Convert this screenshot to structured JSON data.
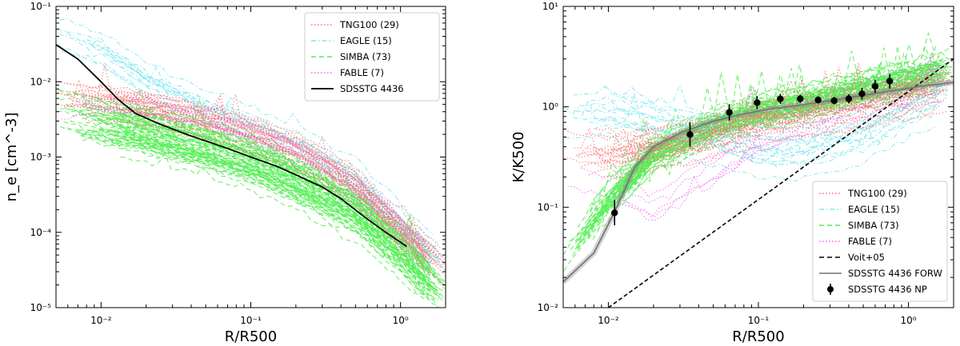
{
  "chart_data": [
    {
      "type": "line",
      "panel": "left",
      "xlabel": "R/R500",
      "ylabel": "n_e [cm^-3]",
      "xlim": [
        0.005,
        2.0
      ],
      "ylim": [
        1e-05,
        0.1
      ],
      "xscale": "log",
      "yscale": "log",
      "x_ticks": [
        {
          "v": 0.01,
          "label": "10⁻²"
        },
        {
          "v": 0.1,
          "label": "10⁻¹"
        },
        {
          "v": 1,
          "label": "10⁰"
        }
      ],
      "y_ticks": [
        {
          "v": 1e-05,
          "label": "10⁻⁵"
        },
        {
          "v": 0.0001,
          "label": "10⁻⁴"
        },
        {
          "v": 0.001,
          "label": "10⁻³"
        },
        {
          "v": 0.01,
          "label": "10⁻²"
        },
        {
          "v": 0.1,
          "label": "10⁻¹"
        }
      ],
      "legend_position": "top-right",
      "legend": [
        {
          "label": "TNG100 (29)",
          "color": "#ff6b6b",
          "style": "dotted"
        },
        {
          "label": "EAGLE (15)",
          "color": "#7fe6f0",
          "style": "dashdot"
        },
        {
          "label": "SIMBA (73)",
          "color": "#55ee55",
          "style": "dashed"
        },
        {
          "label": "FABLE (7)",
          "color": "#ee66ee",
          "style": "dotted"
        },
        {
          "label": "SDSSTG 4436",
          "color": "#000000",
          "style": "solid"
        }
      ],
      "series": [
        {
          "name": "SDSSTG 4436",
          "color": "#000000",
          "x": [
            0.005,
            0.007,
            0.01,
            0.013,
            0.017,
            0.025,
            0.04,
            0.07,
            0.1,
            0.15,
            0.2,
            0.3,
            0.4,
            0.6,
            0.8,
            1.1
          ],
          "y": [
            0.031,
            0.02,
            0.01,
            0.0058,
            0.0038,
            0.0027,
            0.0019,
            0.0013,
            0.001,
            0.00075,
            0.00058,
            0.0004,
            0.00028,
            0.00015,
            0.0001,
            6.5e-05
          ]
        },
        {
          "name": "SIMBA (73)",
          "color": "#55ee55",
          "x": [
            0.005,
            0.01,
            0.02,
            0.05,
            0.1,
            0.2,
            0.5,
            1.0,
            2.0
          ],
          "y": [
            0.004,
            0.003,
            0.0022,
            0.0014,
            0.0009,
            0.0005,
            0.0002,
            6e-05,
            1.5e-05
          ]
        },
        {
          "name": "TNG100 (29)",
          "color": "#ff6b6b",
          "x": [
            0.005,
            0.01,
            0.02,
            0.05,
            0.1,
            0.2,
            0.5,
            1.0,
            2.0
          ],
          "y": [
            0.006,
            0.0055,
            0.0045,
            0.003,
            0.002,
            0.0012,
            0.0004,
            0.0001,
            3e-05
          ]
        },
        {
          "name": "EAGLE (15)",
          "color": "#7fe6f0",
          "x": [
            0.005,
            0.01,
            0.02,
            0.05,
            0.1,
            0.2,
            0.5,
            1.0,
            2.0
          ],
          "y": [
            0.05,
            0.03,
            0.012,
            0.005,
            0.003,
            0.0017,
            0.0006,
            0.00015,
            4e-05
          ]
        },
        {
          "name": "FABLE (7)",
          "color": "#ee66ee",
          "x": [
            0.005,
            0.01,
            0.02,
            0.05,
            0.1,
            0.2,
            0.5,
            1.0,
            2.0
          ],
          "y": [
            0.004,
            0.0045,
            0.004,
            0.003,
            0.002,
            0.0012,
            0.0004,
            0.00012,
            3e-05
          ]
        }
      ]
    },
    {
      "type": "line",
      "panel": "right",
      "xlabel": "R/R500",
      "ylabel": "K/K500",
      "xlim": [
        0.005,
        2.0
      ],
      "ylim": [
        0.01,
        10
      ],
      "xscale": "log",
      "yscale": "log",
      "x_ticks": [
        {
          "v": 0.01,
          "label": "10⁻²"
        },
        {
          "v": 0.1,
          "label": "10⁻¹"
        },
        {
          "v": 1,
          "label": "10⁰"
        }
      ],
      "y_ticks": [
        {
          "v": 0.01,
          "label": "10⁻²"
        },
        {
          "v": 0.1,
          "label": "10⁻¹"
        },
        {
          "v": 1,
          "label": "10⁰"
        },
        {
          "v": 10,
          "label": "10¹"
        }
      ],
      "legend_position": "bottom-right",
      "legend": [
        {
          "label": "TNG100 (29)",
          "color": "#ff6b6b",
          "style": "dotted"
        },
        {
          "label": "EAGLE (15)",
          "color": "#7fe6f0",
          "style": "dashdot"
        },
        {
          "label": "SIMBA (73)",
          "color": "#55ee55",
          "style": "dashed"
        },
        {
          "label": "FABLE (7)",
          "color": "#ee66ee",
          "style": "dotted"
        },
        {
          "label": "Voit+05",
          "color": "#000000",
          "style": "dashed"
        },
        {
          "label": "SDSSTG 4436 FORW",
          "color": "#888888",
          "style": "solid"
        },
        {
          "label": "SDSSTG 4436 NP",
          "color": "#000000",
          "style": "errorbar"
        }
      ],
      "series": [
        {
          "name": "Voit+05",
          "color": "#000000",
          "x": [
            0.01,
            2.0
          ],
          "y": [
            0.01,
            3.0
          ]
        },
        {
          "name": "SDSSTG 4436 FORW",
          "color": "#888888",
          "x": [
            0.005,
            0.008,
            0.011,
            0.015,
            0.02,
            0.03,
            0.05,
            0.08,
            0.12,
            0.2,
            0.3,
            0.5,
            0.8,
            1.2,
            2.0
          ],
          "y": [
            0.018,
            0.035,
            0.09,
            0.25,
            0.4,
            0.55,
            0.72,
            0.85,
            0.95,
            1.05,
            1.15,
            1.3,
            1.45,
            1.6,
            1.75
          ]
        },
        {
          "name": "SDSSTG 4436 NP",
          "color": "#000000",
          "x": [
            0.011,
            0.035,
            0.064,
            0.098,
            0.14,
            0.19,
            0.25,
            0.32,
            0.4,
            0.49,
            0.6,
            0.75
          ],
          "y": [
            0.088,
            0.53,
            0.88,
            1.1,
            1.2,
            1.2,
            1.17,
            1.15,
            1.2,
            1.35,
            1.6,
            1.8
          ],
          "yerr_low": [
            0.022,
            0.13,
            0.15,
            0.15,
            0.13,
            0.1,
            0.09,
            0.09,
            0.12,
            0.17,
            0.22,
            0.28
          ],
          "yerr_high": [
            0.03,
            0.17,
            0.18,
            0.18,
            0.15,
            0.12,
            0.1,
            0.1,
            0.14,
            0.2,
            0.26,
            0.32
          ]
        },
        {
          "name": "SIMBA (73)",
          "color": "#55ee55",
          "x": [
            0.005,
            0.01,
            0.02,
            0.05,
            0.1,
            0.2,
            0.5,
            1.0,
            2.0
          ],
          "y": [
            0.03,
            0.12,
            0.35,
            0.65,
            0.9,
            1.1,
            1.5,
            1.9,
            2.5
          ]
        },
        {
          "name": "EAGLE (15)",
          "color": "#7fe6f0",
          "x": [
            0.005,
            0.01,
            0.02,
            0.05,
            0.1,
            0.2,
            0.5,
            1.0,
            2.0
          ],
          "y": [
            0.8,
            0.9,
            0.7,
            0.5,
            0.35,
            0.35,
            0.5,
            0.9,
            1.5
          ]
        },
        {
          "name": "TNG100 (29)",
          "color": "#ff6b6b",
          "x": [
            0.005,
            0.01,
            0.02,
            0.05,
            0.1,
            0.2,
            0.5,
            1.0,
            2.0
          ],
          "y": [
            0.4,
            0.35,
            0.4,
            0.55,
            0.75,
            0.9,
            1.1,
            1.4,
            1.8
          ]
        },
        {
          "name": "FABLE (7)",
          "color": "#ee66ee",
          "x": [
            0.005,
            0.01,
            0.02,
            0.05,
            0.1,
            0.2,
            0.5,
            1.0,
            2.0
          ],
          "y": [
            0.2,
            0.15,
            0.08,
            0.2,
            0.4,
            0.6,
            1.0,
            1.3,
            1.6
          ]
        }
      ]
    }
  ]
}
